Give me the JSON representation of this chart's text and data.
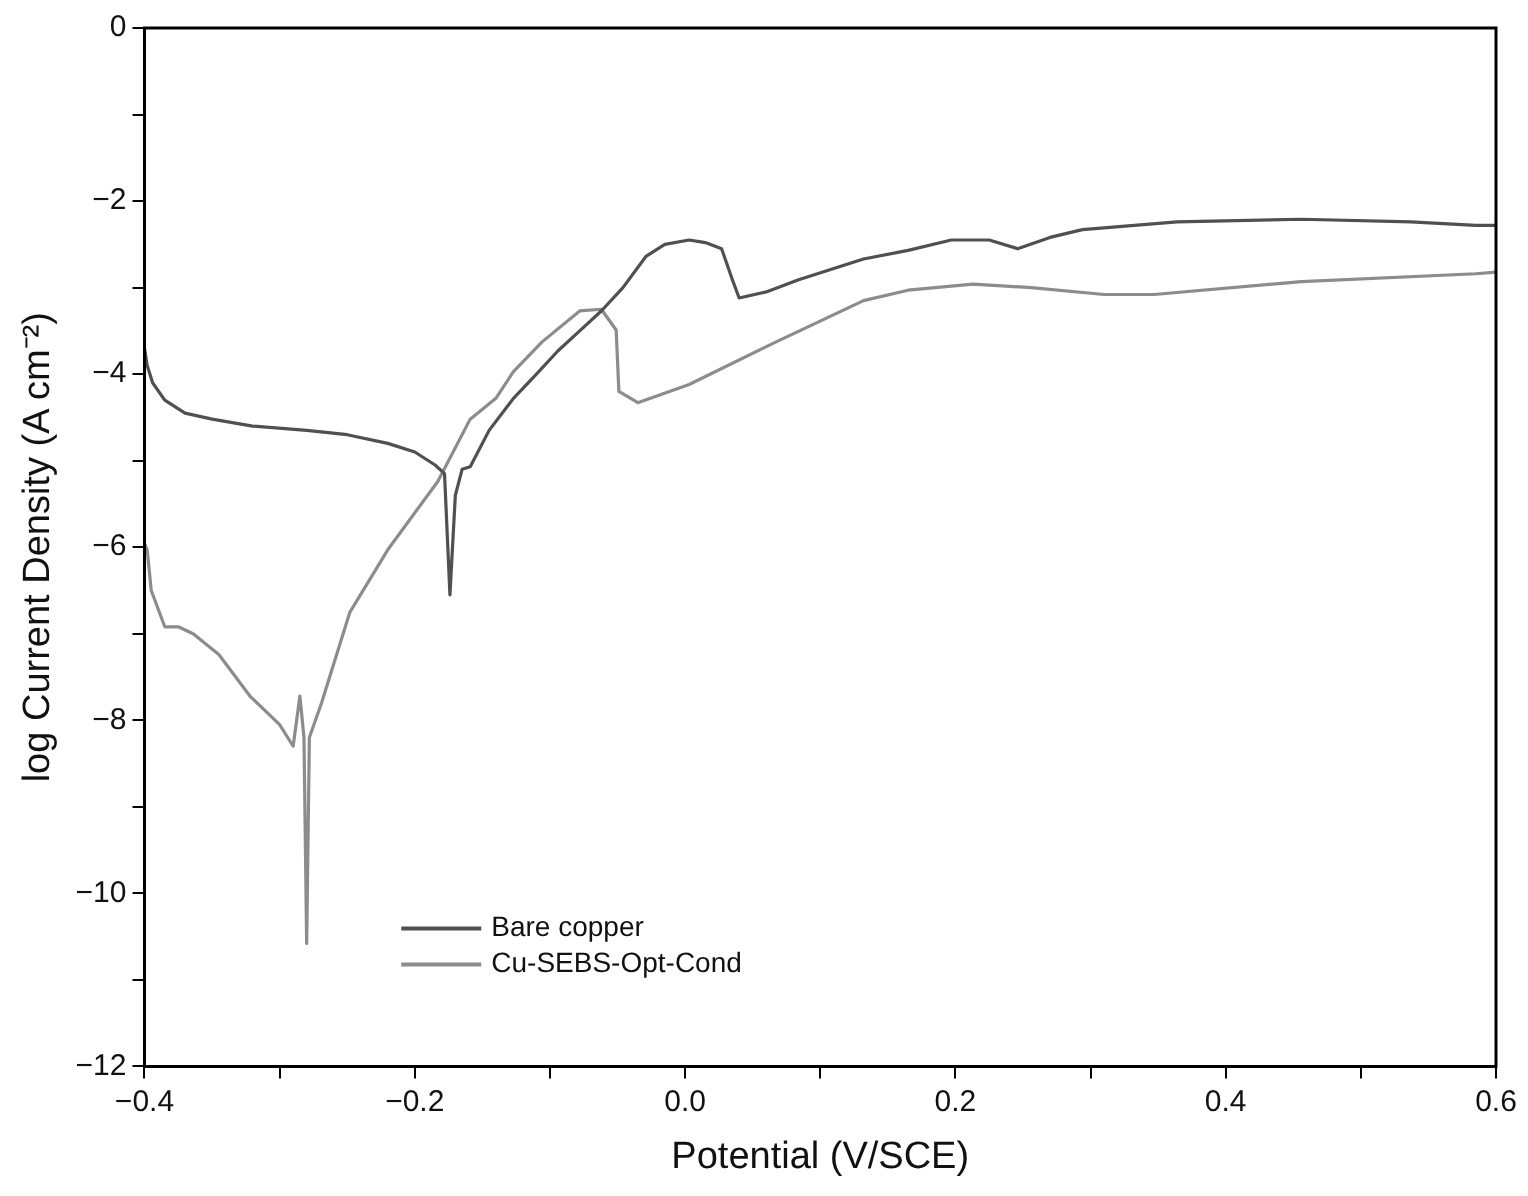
{
  "chart_data": {
    "type": "line",
    "xlabel": "Potential (V/SCE)",
    "ylabel": "log Current Density (A cm⁻²)",
    "xlim": [
      -0.4,
      0.6
    ],
    "ylim": [
      -12,
      0
    ],
    "xticks": [
      {
        "value": -0.4,
        "label": "−0.4"
      },
      {
        "value": -0.3,
        "label": null
      },
      {
        "value": -0.2,
        "label": "−0.2"
      },
      {
        "value": -0.1,
        "label": null
      },
      {
        "value": 0,
        "label": "0.0"
      },
      {
        "value": 0.1,
        "label": null
      },
      {
        "value": 0.2,
        "label": "0.2"
      },
      {
        "value": 0.3,
        "label": null
      },
      {
        "value": 0.4,
        "label": "0.4"
      },
      {
        "value": 0.5,
        "label": null
      },
      {
        "value": 0.6,
        "label": "0.6"
      }
    ],
    "yticks": [
      -12,
      {
        "value": -11,
        "label": null
      },
      -10,
      {
        "value": -9,
        "label": null
      },
      -8,
      {
        "value": -7,
        "label": null
      },
      -6,
      {
        "value": -5,
        "label": null
      },
      -4,
      {
        "value": -3,
        "label": null
      },
      -2,
      {
        "value": -1,
        "label": null
      },
      0
    ],
    "grid": false,
    "legend": "bottom left",
    "marker": "none",
    "line_style": "solid",
    "series": [
      {
        "name": "Bare copper",
        "color": "#505050",
        "x": [
          -0.4,
          -0.398,
          -0.394,
          -0.385,
          -0.37,
          -0.35,
          -0.32,
          -0.28,
          -0.25,
          -0.22,
          -0.2,
          -0.185,
          -0.178,
          -0.174,
          -0.17,
          -0.165,
          -0.159,
          -0.145,
          -0.127,
          -0.11,
          -0.094,
          -0.078,
          -0.062,
          -0.046,
          -0.029,
          -0.015,
          0.003,
          0.015,
          0.027,
          0.035,
          0.04,
          0.06,
          0.084,
          0.132,
          0.165,
          0.197,
          0.225,
          0.246,
          0.27,
          0.294,
          0.364,
          0.456,
          0.537,
          0.585,
          0.6
        ],
        "values": [
          -3.7,
          -3.9,
          -4.1,
          -4.3,
          -4.45,
          -4.52,
          -4.6,
          -4.65,
          -4.7,
          -4.8,
          -4.9,
          -5.05,
          -5.15,
          -6.55,
          -5.4,
          -5.1,
          -5.07,
          -4.65,
          -4.28,
          -4.0,
          -3.73,
          -3.5,
          -3.27,
          -3.0,
          -2.64,
          -2.5,
          -2.45,
          -2.48,
          -2.55,
          -2.91,
          -3.12,
          -3.05,
          -2.91,
          -2.67,
          -2.57,
          -2.45,
          -2.45,
          -2.55,
          -2.42,
          -2.33,
          -2.24,
          -2.21,
          -2.24,
          -2.28,
          -2.28
        ]
      },
      {
        "name": "Cu-SEBS-Opt-Cond",
        "color": "#8c8c8c",
        "x": [
          -0.4,
          -0.398,
          -0.395,
          -0.385,
          -0.375,
          -0.364,
          -0.345,
          -0.322,
          -0.3,
          -0.29,
          -0.285,
          -0.282,
          -0.28,
          -0.278,
          -0.269,
          -0.248,
          -0.22,
          -0.183,
          -0.159,
          -0.14,
          -0.127,
          -0.106,
          -0.078,
          -0.062,
          -0.051,
          -0.049,
          -0.035,
          0.003,
          0.067,
          0.132,
          0.165,
          0.213,
          0.256,
          0.31,
          0.347,
          0.456,
          0.585,
          0.6
        ],
        "values": [
          -5.96,
          -6.03,
          -6.5,
          -6.92,
          -6.92,
          -7.0,
          -7.24,
          -7.72,
          -8.05,
          -8.3,
          -7.72,
          -8.2,
          -10.58,
          -8.2,
          -7.8,
          -6.75,
          -6.03,
          -5.24,
          -4.52,
          -4.28,
          -3.97,
          -3.63,
          -3.27,
          -3.25,
          -3.49,
          -4.2,
          -4.33,
          -4.12,
          -3.63,
          -3.15,
          -3.03,
          -2.96,
          -3.0,
          -3.08,
          -3.08,
          -2.93,
          -2.84,
          -2.82
        ]
      }
    ]
  }
}
